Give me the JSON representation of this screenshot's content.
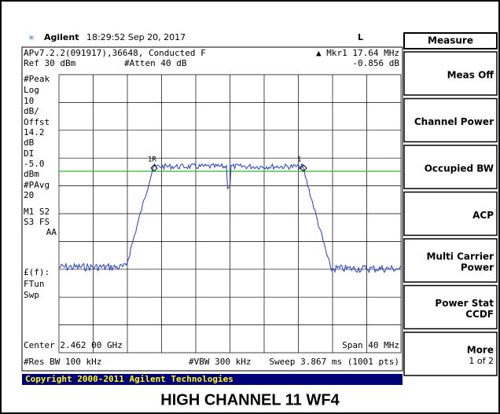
{
  "header": {
    "logo": "Agilent",
    "time": "18:29:52  Sep 20, 2017",
    "mode": "L"
  },
  "info": {
    "line1": "APv7.2.2(091917),36648, Conducted F",
    "marker": "▲ Mkr1  17.64 MHz",
    "ref": "Ref 30 dBm",
    "atten": "#Atten 40 dB",
    "marker_value": "-0.856 dB"
  },
  "left_labels": [
    "#Peak",
    "Log",
    "10",
    "dB/",
    "Offst",
    "14.2",
    "dB",
    "DI",
    "-5.0",
    "dBm",
    "#PAvg",
    "20",
    "M1  S2",
    "S3  FS",
    "AA",
    "£(f):",
    "FTun",
    "Swp"
  ],
  "markers": [
    "1R",
    "1"
  ],
  "footer": {
    "center": "Center 2.462 00 GHz",
    "span": "Span 40 MHz",
    "rbw": "#Res BW 100 kHz",
    "vbw": "#VBW 300 kHz",
    "sweep": "Sweep 3.867 ms (1001 pts)"
  },
  "softkeys": {
    "title": "Measure",
    "keys": [
      [
        "Meas Off"
      ],
      [
        "Channel Power"
      ],
      [
        "Occupied BW"
      ],
      [
        "ACP"
      ],
      [
        "Multi Carrier",
        "Power"
      ],
      [
        "Power Stat",
        "CCDF"
      ],
      [
        "More",
        "1 of 2"
      ]
    ]
  },
  "copyright": "Copyright 2000-2011 Agilent Technologies",
  "caption": "HIGH CHANNEL 11 WF4"
}
